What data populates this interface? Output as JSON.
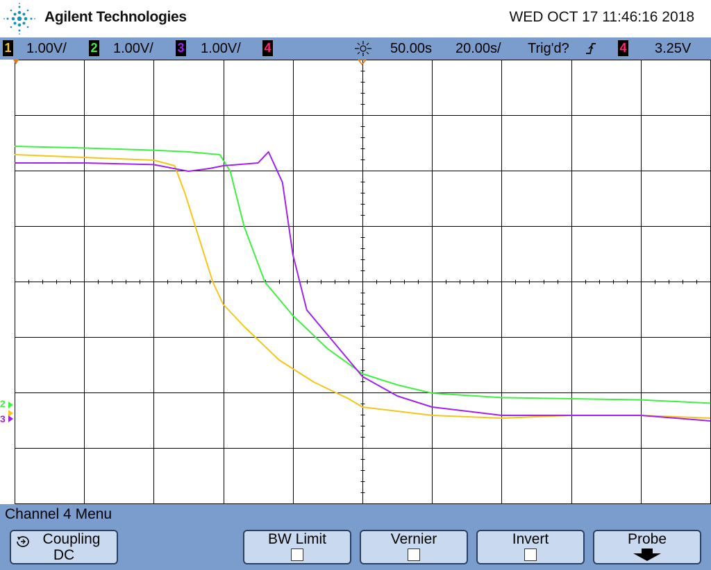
{
  "header": {
    "brand": "Agilent Technologies",
    "datetime": "WED OCT 17 11:46:16 2018"
  },
  "status": {
    "ch1_num": "1",
    "ch1_scale": "1.00V/",
    "ch2_num": "2",
    "ch2_scale": "1.00V/",
    "ch3_num": "3",
    "ch3_scale": "1.00V/",
    "ch4_num": "4",
    "time_delay": "50.00s",
    "time_scale": "20.00s/",
    "trigger_state": "Trig'd?",
    "trigger_source": "4",
    "trigger_level": "3.25V"
  },
  "colors": {
    "ch1": "#f5c518",
    "ch2": "#3ff03f",
    "ch3": "#a020f0",
    "ch4": "#ff2a6e"
  },
  "markers": {
    "ch2": "2",
    "ch3": "3"
  },
  "menu": {
    "title": "Channel 4  Menu",
    "coupling_label": "Coupling",
    "coupling_value": "DC",
    "bw_limit_label": "BW Limit",
    "vernier_label": "Vernier",
    "invert_label": "Invert",
    "probe_label": "Probe"
  },
  "icons": {
    "logo": "agilent-spark-icon",
    "coupling": "rotate-icon",
    "trigger": "rising-edge-icon",
    "timebase": "timebase-icon",
    "probe": "arrow-down-icon"
  },
  "chart_data": {
    "type": "line",
    "x_divisions": 10,
    "y_divisions": 8,
    "series": [
      {
        "channel": "1",
        "color": "#f5c518",
        "x": [
          0.0,
          1.0,
          2.0,
          2.3,
          2.45,
          2.65,
          2.85,
          3.0,
          3.3,
          3.8,
          4.3,
          4.8,
          5.0,
          6.0,
          7.0,
          8.0,
          9.0,
          10.0
        ],
        "y": [
          6.3,
          6.25,
          6.2,
          6.1,
          5.6,
          4.8,
          4.0,
          3.6,
          3.2,
          2.6,
          2.2,
          1.9,
          1.75,
          1.6,
          1.55,
          1.6,
          1.6,
          1.55
        ]
      },
      {
        "channel": "2",
        "color": "#3ff03f",
        "x": [
          0.0,
          1.0,
          2.0,
          2.5,
          2.95,
          3.1,
          3.3,
          3.6,
          4.0,
          4.5,
          5.0,
          5.5,
          6.0,
          7.0,
          8.0,
          9.0,
          10.0
        ],
        "y": [
          6.45,
          6.42,
          6.38,
          6.35,
          6.3,
          6.0,
          5.0,
          4.0,
          3.4,
          2.8,
          2.35,
          2.15,
          2.0,
          1.92,
          1.9,
          1.88,
          1.82
        ]
      },
      {
        "channel": "3",
        "color": "#a020f0",
        "x": [
          0.0,
          1.0,
          2.0,
          2.5,
          2.8,
          3.0,
          3.5,
          3.65,
          3.85,
          4.0,
          4.2,
          4.6,
          5.0,
          5.5,
          6.0,
          7.0,
          8.0,
          9.0,
          10.0
        ],
        "y": [
          6.15,
          6.15,
          6.12,
          6.0,
          6.05,
          6.1,
          6.15,
          6.35,
          5.8,
          4.5,
          3.5,
          2.9,
          2.3,
          1.95,
          1.75,
          1.6,
          1.6,
          1.6,
          1.5
        ]
      }
    ]
  }
}
